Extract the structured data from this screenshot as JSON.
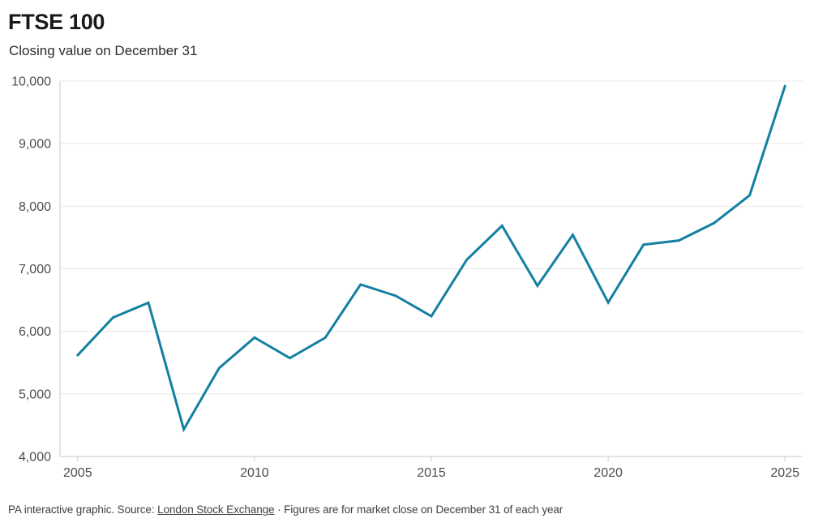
{
  "header": {
    "title": "FTSE 100",
    "subtitle": "Closing value on December 31"
  },
  "footer": {
    "prefix": "PA interactive graphic. Source: ",
    "source_link": "London Stock Exchange",
    "suffix": " · Figures are for market close on December 31 of each year"
  },
  "style": {
    "line_color": "#1380a1",
    "grid_color": "#e7e7e7",
    "axis_color": "#c9c9c9",
    "tick_label_color": "#4d4d4d",
    "title_color": "#191919"
  },
  "chart_data": {
    "type": "line",
    "title": "FTSE 100",
    "subtitle": "Closing value on December 31",
    "series_name": "FTSE 100 closing value on December 31",
    "x": [
      2005,
      2006,
      2007,
      2008,
      2009,
      2010,
      2011,
      2012,
      2013,
      2014,
      2015,
      2016,
      2017,
      2018,
      2019,
      2020,
      2021,
      2022,
      2023,
      2024,
      2025
    ],
    "values": [
      5619,
      6221,
      6457,
      4434,
      5413,
      5900,
      5572,
      5898,
      6749,
      6566,
      6242,
      7143,
      7688,
      6728,
      7542,
      6461,
      7385,
      7452,
      7733,
      8173,
      9920
    ],
    "xlim": [
      2004.5,
      2025.5
    ],
    "ylim": [
      4000,
      10000
    ],
    "x_ticks": [
      {
        "value": 2005,
        "label": "2005"
      },
      {
        "value": 2010,
        "label": "2010"
      },
      {
        "value": 2015,
        "label": "2015"
      },
      {
        "value": 2020,
        "label": "2020"
      },
      {
        "value": 2025,
        "label": "2025"
      }
    ],
    "y_ticks": [
      {
        "value": 4000,
        "label": "4,000"
      },
      {
        "value": 5000,
        "label": "5,000"
      },
      {
        "value": 6000,
        "label": "6,000"
      },
      {
        "value": 7000,
        "label": "7,000"
      },
      {
        "value": 8000,
        "label": "8,000"
      },
      {
        "value": 9000,
        "label": "9,000"
      },
      {
        "value": 10000,
        "label": "10,000"
      }
    ],
    "grid": "horizontal",
    "legend": "none",
    "line_color": "#1380a1"
  }
}
